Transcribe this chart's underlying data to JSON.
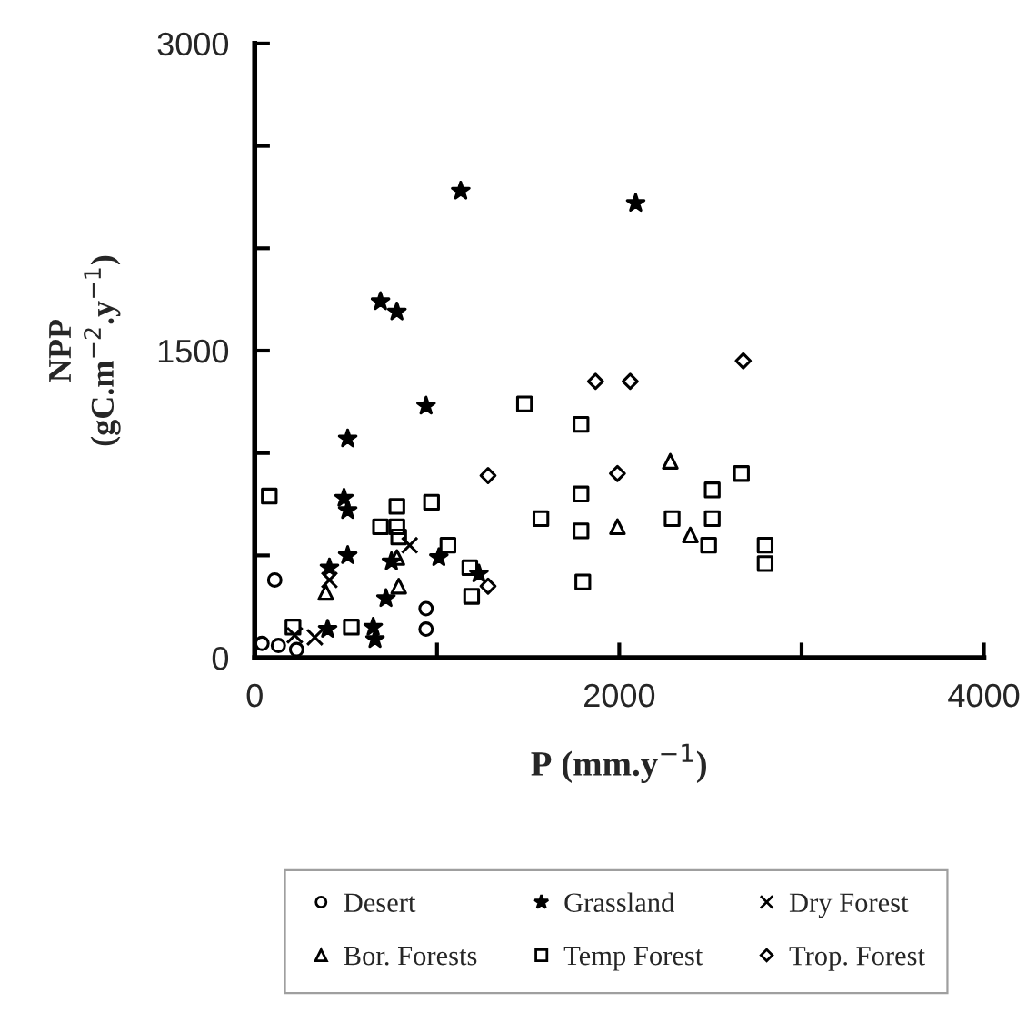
{
  "chart_data": {
    "type": "scatter",
    "xlabel": "P (mm.y$^{−1}$)",
    "ylabel": "NPP\n(gC.m$^{−2}$.y$^{−1}$)",
    "xlim": [
      0,
      4000
    ],
    "ylim": [
      0,
      3000
    ],
    "xticks": [
      0,
      {
        "value": 1000,
        "label": null
      },
      2000,
      {
        "value": 3000,
        "label": null
      },
      4000
    ],
    "yticks": [
      0,
      {
        "value": 500,
        "label": null
      },
      {
        "value": 1000,
        "label": null
      },
      1500,
      {
        "value": 2000,
        "label": null
      },
      {
        "value": 2500,
        "label": null
      },
      3000
    ],
    "grid": false,
    "legend": "bottom",
    "series": [
      {
        "name": "Desert",
        "color": "#000000",
        "marker": "circle",
        "x": [
          40,
          130,
          230,
          110,
          940,
          940
        ],
        "values": [
          70,
          60,
          40,
          380,
          240,
          140
        ]
      },
      {
        "name": "Grassland",
        "color": "#000000",
        "marker": "star",
        "x": [
          1130,
          690,
          780,
          940,
          510,
          490,
          510,
          510,
          410,
          750,
          720,
          1010,
          1230,
          400,
          650,
          660,
          2090
        ],
        "values": [
          2280,
          1740,
          1690,
          1230,
          1070,
          780,
          720,
          500,
          440,
          470,
          290,
          490,
          410,
          140,
          150,
          90,
          2220
        ]
      },
      {
        "name": "Dry Forest",
        "color": "#000000",
        "marker": "cross",
        "x": [
          330,
          850,
          220,
          410
        ],
        "values": [
          100,
          550,
          110,
          380
        ]
      },
      {
        "name": "Bor. Forests",
        "color": "#000000",
        "marker": "triangle",
        "x": [
          390,
          790,
          780,
          2280,
          1990,
          2390
        ],
        "values": [
          320,
          350,
          490,
          960,
          640,
          600
        ]
      },
      {
        "name": "Temp Forest",
        "color": "#000000",
        "marker": "square",
        "x": [
          80,
          210,
          530,
          690,
          780,
          780,
          790,
          970,
          1060,
          1180,
          1190,
          1480,
          1790,
          1570,
          1790,
          1790,
          1800,
          2510,
          2290,
          2510,
          2490,
          2670,
          2800,
          2800
        ],
        "values": [
          790,
          150,
          150,
          640,
          740,
          640,
          590,
          760,
          550,
          440,
          300,
          1240,
          1140,
          680,
          800,
          620,
          370,
          820,
          680,
          680,
          550,
          900,
          550,
          460
        ]
      },
      {
        "name": "Trop. Forest",
        "color": "#000000",
        "marker": "diamond",
        "x": [
          1280,
          1280,
          1870,
          2060,
          2680,
          1990
        ],
        "values": [
          890,
          350,
          1350,
          1350,
          1450,
          900
        ]
      }
    ]
  }
}
